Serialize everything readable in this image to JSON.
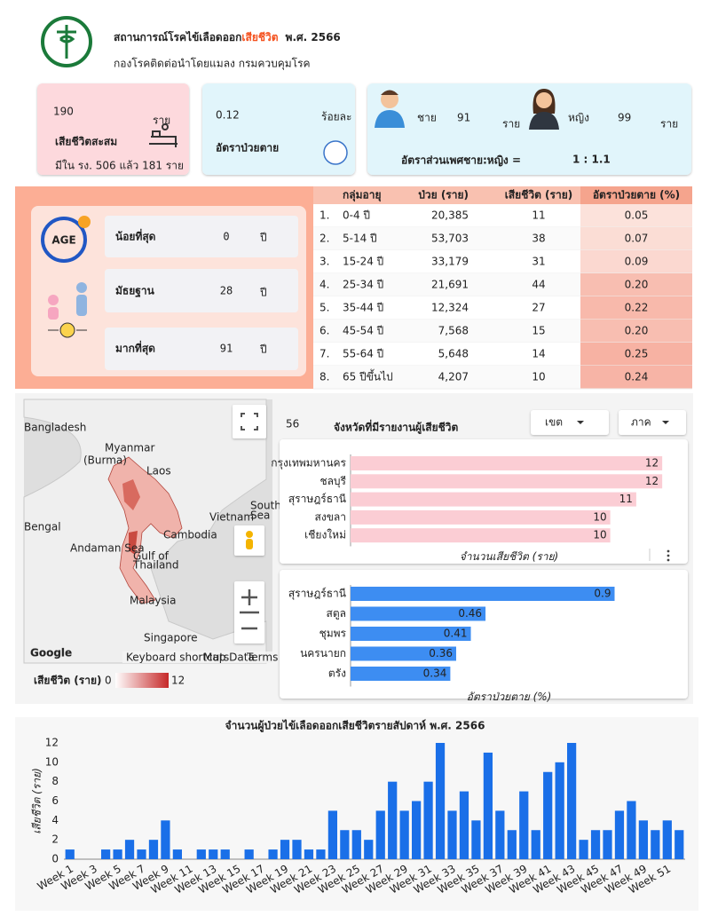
{
  "header": {
    "title_main": "สถานการณ์โรคไข้เลือดออก",
    "title_highlight": "เสียชีวิต",
    "title_year": "พ.ศ. 2566",
    "subtitle": "กองโรคติดต่อนำโดยแมลง กรมควบคุมโรค"
  },
  "summary": {
    "deaths": {
      "value": "190",
      "unit": "ราย",
      "label": "เสียชีวิตสะสม",
      "note": "มีใน รง. 506 แล้ว 181 ราย"
    },
    "cfr": {
      "value": "0.12",
      "unit": "ร้อยละ",
      "label": "อัตราป่วยตาย"
    },
    "gender": {
      "male_label": "ชาย",
      "male_value": "91",
      "male_unit": "ราย",
      "female_label": "หญิง",
      "female_value": "99",
      "female_unit": "ราย",
      "ratio_label": "อัตราส่วนเพศชาย:หญิง =",
      "ratio": "1 : 1.1"
    }
  },
  "age": {
    "icon_text": "AGE",
    "min": {
      "label": "น้อยที่สุด",
      "value": "0",
      "unit": "ปี"
    },
    "median": {
      "label": "มัธยฐาน",
      "value": "28",
      "unit": "ปี"
    },
    "max": {
      "label": "มากที่สุด",
      "value": "91",
      "unit": "ปี"
    }
  },
  "age_table": {
    "columns": [
      "กลุ่มอายุ",
      "ป่วย (ราย)",
      "เสียชีวิต (ราย)",
      "อัตราป่วยตาย (%)"
    ],
    "rows": [
      [
        "1.",
        "0-4 ปี",
        "20,385",
        "11",
        "0.05"
      ],
      [
        "2.",
        "5-14 ปี",
        "53,703",
        "38",
        "0.07"
      ],
      [
        "3.",
        "15-24 ปี",
        "33,179",
        "31",
        "0.09"
      ],
      [
        "4.",
        "25-34 ปี",
        "21,691",
        "44",
        "0.20"
      ],
      [
        "5.",
        "35-44 ปี",
        "12,324",
        "27",
        "0.22"
      ],
      [
        "6.",
        "45-54 ปี",
        "7,568",
        "15",
        "0.20"
      ],
      [
        "7.",
        "55-64 ปี",
        "5,648",
        "14",
        "0.25"
      ],
      [
        "8.",
        "65 ปีขึ้นไป",
        "4,207",
        "10",
        "0.24"
      ]
    ]
  },
  "map": {
    "labels": [
      "Bangladesh",
      "Myanmar",
      "(Burma)",
      "Laos",
      "Vietnam",
      "Cambodia",
      "Bengal",
      "Andaman Sea",
      "Gulf of",
      "Thailand",
      "South C",
      "Sea",
      "Malaysia",
      "Singapore"
    ],
    "attribution": [
      "Google",
      "Keyboard shortcuts",
      "Map Data",
      "Terms"
    ],
    "legend": {
      "title": "เสียชีวิต (ราย)",
      "min": "0",
      "max": "12"
    }
  },
  "provinces": {
    "count": "56",
    "title": "จังหวัดที่มีรายงานผู้เสียชีวิต",
    "filters": [
      "เขต",
      "ภาค"
    ]
  },
  "chart_data": [
    {
      "type": "bar",
      "orientation": "horizontal",
      "categories": [
        "กรุงเทพมหานคร",
        "ชลบุรี",
        "สุราษฎร์ธานี",
        "สงขลา",
        "เชียงใหม่"
      ],
      "values": [
        12,
        12,
        11,
        10,
        10
      ],
      "color": "#fbcdd4",
      "xlabel": "จำนวนเสียชีวิต (ราย)",
      "xlim": [
        0,
        12.2
      ]
    },
    {
      "type": "bar",
      "orientation": "horizontal",
      "categories": [
        "สุราษฎร์ธานี",
        "สตูล",
        "ชุมพร",
        "นครนายก",
        "ตรัง"
      ],
      "values": [
        0.9,
        0.46,
        0.41,
        0.36,
        0.34
      ],
      "color": "#3d8df2",
      "xlabel": "อัตราป่วยตาย (%)",
      "xlim": [
        0,
        1.08
      ]
    },
    {
      "type": "bar",
      "orientation": "vertical",
      "title": "จำนวนผู้ป่วยไข้เลือดออกเสียชีวิตรายสัปดาห์ พ.ศ. 2566",
      "ylabel": "เสียชีวิต (ราย)",
      "categories": [
        "Week 1",
        null,
        "Week 3",
        null,
        "Week 5",
        null,
        "Week 7",
        null,
        "Week 9",
        null,
        "Week 11",
        null,
        "Week 13",
        null,
        "Week 15",
        null,
        "Week 17",
        null,
        "Week 19",
        null,
        "Week 21",
        null,
        "Week 23",
        null,
        "Week 25",
        null,
        "Week 27",
        null,
        "Week 29",
        null,
        "Week 31",
        null,
        "Week 33",
        null,
        "Week 35",
        null,
        "Week 37",
        null,
        "Week 39",
        null,
        "Week 41",
        null,
        "Week 43",
        null,
        "Week 45",
        null,
        "Week 47",
        null,
        "Week 49",
        null,
        "Week 51",
        null
      ],
      "values": [
        1,
        0,
        0,
        1,
        1,
        2,
        1,
        2,
        4,
        1,
        0,
        1,
        1,
        1,
        0,
        1,
        0,
        1,
        2,
        2,
        1,
        1,
        5,
        3,
        3,
        2,
        5,
        8,
        5,
        6,
        8,
        12,
        5,
        7,
        4,
        11,
        5,
        3,
        7,
        3,
        9,
        10,
        12,
        2,
        3,
        3,
        5,
        6,
        4,
        3,
        4,
        3
      ],
      "color": "#1a6fe8",
      "ylim": [
        0,
        12
      ],
      "yticks": [
        0,
        2,
        4,
        6,
        8,
        10,
        12
      ],
      "grid": false
    }
  ]
}
